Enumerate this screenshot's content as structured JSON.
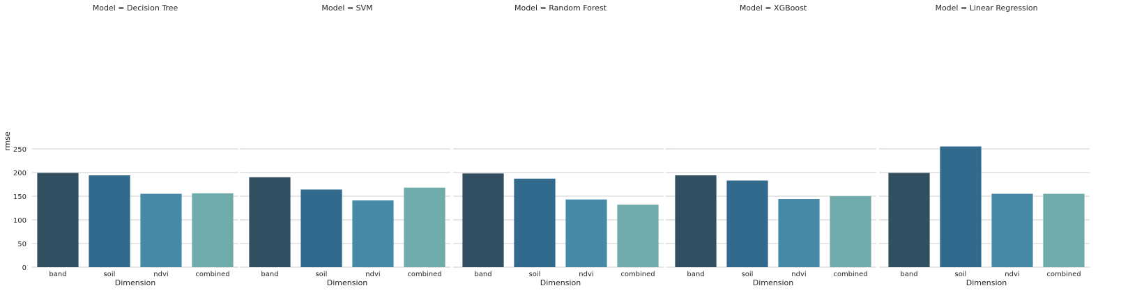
{
  "chart_data": {
    "type": "bar",
    "facet_var": "Model",
    "ylabel": "rmse",
    "xlabel": "Dimension",
    "categories": [
      "band",
      "soil",
      "ndvi",
      "combined"
    ],
    "yticks": [
      0,
      50,
      100,
      150,
      200,
      250
    ],
    "ylim": [
      0,
      265
    ],
    "grid": true,
    "colors": [
      "#314f60",
      "#326a8d",
      "#468aa8",
      "#6fabaa"
    ],
    "facets": [
      {
        "title": "Model = Decision Tree",
        "values": [
          199,
          194,
          155,
          156
        ]
      },
      {
        "title": "Model = SVM",
        "values": [
          190,
          164,
          141,
          168
        ]
      },
      {
        "title": "Model = Random Forest",
        "values": [
          198,
          187,
          143,
          132
        ]
      },
      {
        "title": "Model = XGBoost",
        "values": [
          194,
          183,
          144,
          150
        ]
      },
      {
        "title": "Model = Linear Regression",
        "values": [
          199,
          255,
          155,
          155
        ]
      }
    ]
  }
}
